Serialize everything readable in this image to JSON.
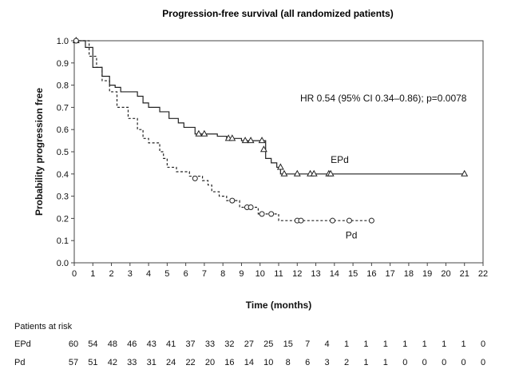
{
  "chart_data": {
    "type": "line",
    "title": "Progression-free survival (all randomized patients)",
    "xlabel": "Time (months)",
    "ylabel": "Probability progression free",
    "xlim": [
      0,
      22
    ],
    "ylim": [
      0,
      1.0
    ],
    "x_ticks": [
      "0",
      "1",
      "2",
      "3",
      "4",
      "5",
      "6",
      "7",
      "8",
      "9",
      "10",
      "11",
      "12",
      "13",
      "14",
      "15",
      "16",
      "17",
      "18",
      "19",
      "20",
      "21",
      "22"
    ],
    "y_ticks": [
      "0.0",
      "0.1",
      "0.2",
      "0.3",
      "0.4",
      "0.5",
      "0.6",
      "0.7",
      "0.8",
      "0.9",
      "1.0"
    ],
    "grid": false,
    "annotation": "HR 0.54 (95% CI 0.34–0.86); p=0.0078",
    "series": [
      {
        "name": "EPd",
        "line_style": "solid",
        "censor_marker": "triangle",
        "steps": [
          [
            0,
            1.0
          ],
          [
            0.6,
            0.97
          ],
          [
            1.0,
            0.88
          ],
          [
            1.5,
            0.84
          ],
          [
            1.9,
            0.8
          ],
          [
            2.2,
            0.79
          ],
          [
            2.5,
            0.77
          ],
          [
            3.4,
            0.75
          ],
          [
            3.7,
            0.72
          ],
          [
            4.0,
            0.7
          ],
          [
            4.6,
            0.68
          ],
          [
            5.1,
            0.65
          ],
          [
            5.6,
            0.63
          ],
          [
            5.9,
            0.61
          ],
          [
            6.5,
            0.58
          ],
          [
            7.7,
            0.57
          ],
          [
            8.2,
            0.56
          ],
          [
            9.0,
            0.55
          ],
          [
            10.0,
            0.55
          ],
          [
            10.3,
            0.47
          ],
          [
            10.6,
            0.45
          ],
          [
            10.9,
            0.43
          ],
          [
            11.1,
            0.4
          ],
          [
            21.0,
            0.4
          ]
        ],
        "censored": [
          [
            0.1,
            1.0
          ],
          [
            6.7,
            0.58
          ],
          [
            7.0,
            0.58
          ],
          [
            8.3,
            0.56
          ],
          [
            8.5,
            0.56
          ],
          [
            9.2,
            0.55
          ],
          [
            9.5,
            0.55
          ],
          [
            10.1,
            0.55
          ],
          [
            10.2,
            0.51
          ],
          [
            11.1,
            0.43
          ],
          [
            11.3,
            0.4
          ],
          [
            12.0,
            0.4
          ],
          [
            12.7,
            0.4
          ],
          [
            12.9,
            0.4
          ],
          [
            13.7,
            0.4
          ],
          [
            13.8,
            0.4
          ],
          [
            21.0,
            0.4
          ]
        ],
        "label_pos": [
          13.8,
          0.45
        ]
      },
      {
        "name": "Pd",
        "line_style": "dashed",
        "censor_marker": "circle",
        "steps": [
          [
            0,
            1.0
          ],
          [
            0.8,
            0.93
          ],
          [
            1.2,
            0.88
          ],
          [
            1.5,
            0.82
          ],
          [
            1.9,
            0.77
          ],
          [
            2.3,
            0.7
          ],
          [
            2.9,
            0.65
          ],
          [
            3.4,
            0.6
          ],
          [
            3.7,
            0.56
          ],
          [
            4.0,
            0.54
          ],
          [
            4.6,
            0.5
          ],
          [
            4.8,
            0.47
          ],
          [
            5.0,
            0.43
          ],
          [
            5.5,
            0.41
          ],
          [
            6.2,
            0.39
          ],
          [
            6.9,
            0.37
          ],
          [
            7.2,
            0.35
          ],
          [
            7.4,
            0.32
          ],
          [
            7.8,
            0.3
          ],
          [
            8.2,
            0.28
          ],
          [
            8.9,
            0.25
          ],
          [
            9.9,
            0.22
          ],
          [
            10.6,
            0.22
          ],
          [
            11.0,
            0.19
          ],
          [
            16.0,
            0.19
          ]
        ],
        "censored": [
          [
            0.1,
            1.0
          ],
          [
            6.5,
            0.38
          ],
          [
            8.5,
            0.28
          ],
          [
            9.3,
            0.25
          ],
          [
            9.5,
            0.25
          ],
          [
            10.1,
            0.22
          ],
          [
            10.6,
            0.22
          ],
          [
            12.0,
            0.19
          ],
          [
            12.2,
            0.19
          ],
          [
            13.9,
            0.19
          ],
          [
            14.8,
            0.19
          ],
          [
            16.0,
            0.19
          ]
        ],
        "label_pos": [
          14.6,
          0.11
        ]
      }
    ],
    "risk_table": {
      "title": "Patients at risk",
      "rows": [
        {
          "name": "EPd",
          "values": [
            "60",
            "54",
            "48",
            "46",
            "43",
            "41",
            "37",
            "33",
            "32",
            "27",
            "25",
            "15",
            "7",
            "4",
            "1",
            "1",
            "1",
            "1",
            "1",
            "1",
            "1",
            "0"
          ]
        },
        {
          "name": "Pd",
          "values": [
            "57",
            "51",
            "42",
            "33",
            "31",
            "24",
            "22",
            "20",
            "16",
            "14",
            "10",
            "8",
            "6",
            "3",
            "2",
            "1",
            "1",
            "0",
            "0",
            "0",
            "0",
            "0"
          ]
        }
      ]
    }
  }
}
